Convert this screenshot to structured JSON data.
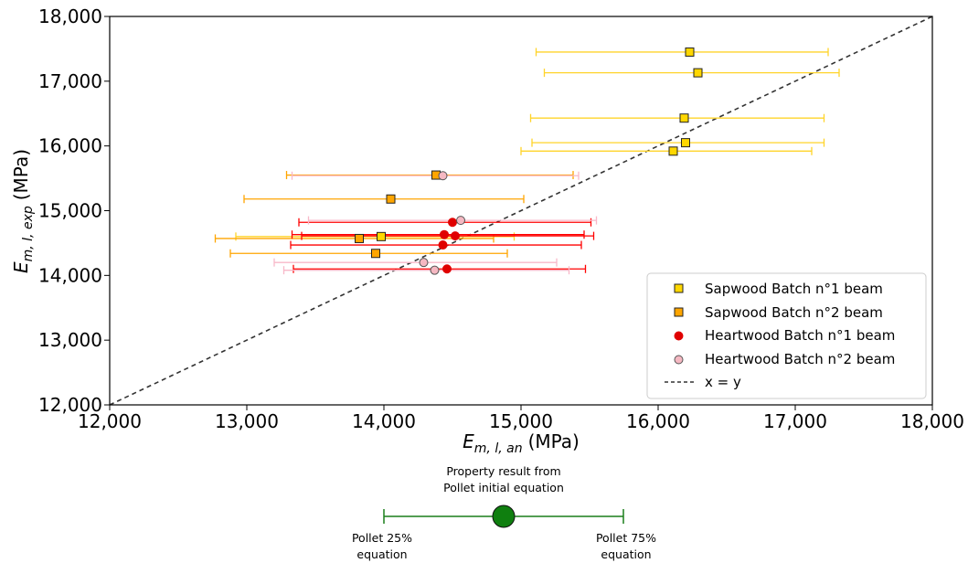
{
  "chart_data": {
    "type": "scatter",
    "xlabel": {
      "main": "E",
      "sub": "m, l, an",
      "unit": "(MPa)"
    },
    "ylabel": {
      "main": "E",
      "sub": "m, l, exp",
      "unit": "(MPa)"
    },
    "xlim": [
      12000,
      18000
    ],
    "ylim": [
      12000,
      18000
    ],
    "xticks": [
      12000,
      13000,
      14000,
      15000,
      16000,
      17000,
      18000
    ],
    "yticks": [
      12000,
      13000,
      14000,
      15000,
      16000,
      17000,
      18000
    ],
    "xtick_labels": [
      "12,000",
      "13,000",
      "14,000",
      "15,000",
      "16,000",
      "17,000",
      "18,000"
    ],
    "ytick_labels": [
      "12,000",
      "13,000",
      "14,000",
      "15,000",
      "16,000",
      "17,000",
      "18,000"
    ],
    "grid": false,
    "legend_position": "lower-right",
    "series": [
      {
        "name": "Sapwood Batch n°1 beam",
        "marker": "square",
        "color": "#FFD700",
        "edge": "#222222",
        "errcolor": "#FFD42A",
        "points": [
          {
            "x": 16230,
            "y": 17450,
            "xmin": 15110,
            "xmax": 17240
          },
          {
            "x": 16290,
            "y": 17130,
            "xmin": 15170,
            "xmax": 17320
          },
          {
            "x": 16190,
            "y": 16430,
            "xmin": 15070,
            "xmax": 17210
          },
          {
            "x": 16200,
            "y": 16050,
            "xmin": 15080,
            "xmax": 17210
          },
          {
            "x": 16110,
            "y": 15920,
            "xmin": 15000,
            "xmax": 17120
          },
          {
            "x": 13980,
            "y": 14600,
            "xmin": 12920,
            "xmax": 14950
          }
        ]
      },
      {
        "name": "Sapwood Batch n°2 beam",
        "marker": "square",
        "color": "#FFA500",
        "edge": "#222222",
        "errcolor": "#FFA500",
        "points": [
          {
            "x": 14380,
            "y": 15550,
            "xmin": 13290,
            "xmax": 15380
          },
          {
            "x": 14050,
            "y": 15180,
            "xmin": 12980,
            "xmax": 15020
          },
          {
            "x": 13820,
            "y": 14570,
            "xmin": 12770,
            "xmax": 14800
          },
          {
            "x": 13940,
            "y": 14340,
            "xmin": 12880,
            "xmax": 14900
          }
        ]
      },
      {
        "name": "Heartwood Batch n°1 beam",
        "marker": "circle",
        "color": "#E00000",
        "edge": "#E00000",
        "errcolor": "#FF0000",
        "points": [
          {
            "x": 14500,
            "y": 14820,
            "xmin": 13380,
            "xmax": 15510
          },
          {
            "x": 14440,
            "y": 14630,
            "xmin": 13330,
            "xmax": 15460
          },
          {
            "x": 14520,
            "y": 14610,
            "xmin": 13400,
            "xmax": 15530
          },
          {
            "x": 14430,
            "y": 14470,
            "xmin": 13320,
            "xmax": 15440
          },
          {
            "x": 14460,
            "y": 14100,
            "xmin": 13340,
            "xmax": 15470
          }
        ]
      },
      {
        "name": "Heartwood Batch n°2 beam",
        "marker": "circle",
        "color": "#F5B8C2",
        "edge": "#555555",
        "errcolor": "#F8B8C8",
        "points": [
          {
            "x": 14430,
            "y": 15540,
            "xmin": 13330,
            "xmax": 15420
          },
          {
            "x": 14560,
            "y": 14850,
            "xmin": 13450,
            "xmax": 15550
          },
          {
            "x": 14290,
            "y": 14200,
            "xmin": 13200,
            "xmax": 15260
          },
          {
            "x": 14370,
            "y": 14080,
            "xmin": 13270,
            "xmax": 15350
          }
        ]
      }
    ],
    "reference_line": {
      "name": "x = y",
      "style": "dashed",
      "color": "#333333"
    }
  },
  "legend": {
    "items": [
      "Sapwood Batch n°1 beam",
      "Sapwood Batch n°2 beam",
      "Heartwood Batch n°1 beam",
      "Heartwood Batch n°2 beam",
      "x = y"
    ]
  },
  "key": {
    "top_line1": "Property result from",
    "top_line2": "Pollet initial equation",
    "left_line1": "Pollet 25%",
    "left_line2": "equation",
    "right_line1": "Pollet 75%",
    "right_line2": "equation",
    "color": "#1A7F1A",
    "fill": "#0F7F0F"
  }
}
